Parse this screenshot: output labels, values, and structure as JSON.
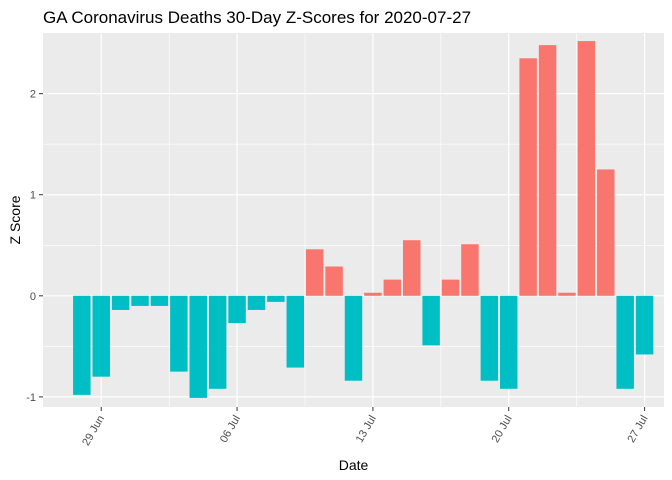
{
  "chart_data": {
    "type": "bar",
    "title": "GA Coronavirus Deaths 30-Day Z-Scores for 2020-07-27",
    "xlabel": "Date",
    "ylabel": "Z Score",
    "x_tick_labels": [
      "29 Jun",
      "06 Jul",
      "13 Jul",
      "20 Jul",
      "27 Jul"
    ],
    "x_tick_dates": [
      "2020-06-29",
      "2020-07-06",
      "2020-07-13",
      "2020-07-20",
      "2020-07-27"
    ],
    "y_ticks": [
      -1,
      0,
      1,
      2
    ],
    "xlim": [
      "2020-06-26",
      "2020-07-28"
    ],
    "ylim": [
      -1.1,
      2.6
    ],
    "grid": true,
    "legend": "none",
    "colors": {
      "positive": "#F8766D",
      "negative": "#00BFC4",
      "panel": "#EBEBEB",
      "grid": "#FFFFFF"
    },
    "dates": [
      "2020-06-28",
      "2020-06-29",
      "2020-06-30",
      "2020-07-01",
      "2020-07-02",
      "2020-07-03",
      "2020-07-04",
      "2020-07-05",
      "2020-07-06",
      "2020-07-07",
      "2020-07-08",
      "2020-07-09",
      "2020-07-10",
      "2020-07-11",
      "2020-07-12",
      "2020-07-13",
      "2020-07-14",
      "2020-07-15",
      "2020-07-16",
      "2020-07-17",
      "2020-07-18",
      "2020-07-19",
      "2020-07-20",
      "2020-07-21",
      "2020-07-22",
      "2020-07-23",
      "2020-07-24",
      "2020-07-25",
      "2020-07-26",
      "2020-07-27"
    ],
    "values": [
      -0.98,
      -0.8,
      -0.14,
      -0.1,
      -0.1,
      -0.75,
      -1.01,
      -0.92,
      -0.27,
      -0.14,
      -0.06,
      -0.71,
      0.46,
      0.29,
      -0.84,
      0.03,
      0.16,
      0.55,
      -0.49,
      0.16,
      0.51,
      -0.84,
      -0.92,
      2.35,
      2.48,
      0.03,
      2.52,
      1.25,
      -0.92,
      -0.58
    ]
  }
}
